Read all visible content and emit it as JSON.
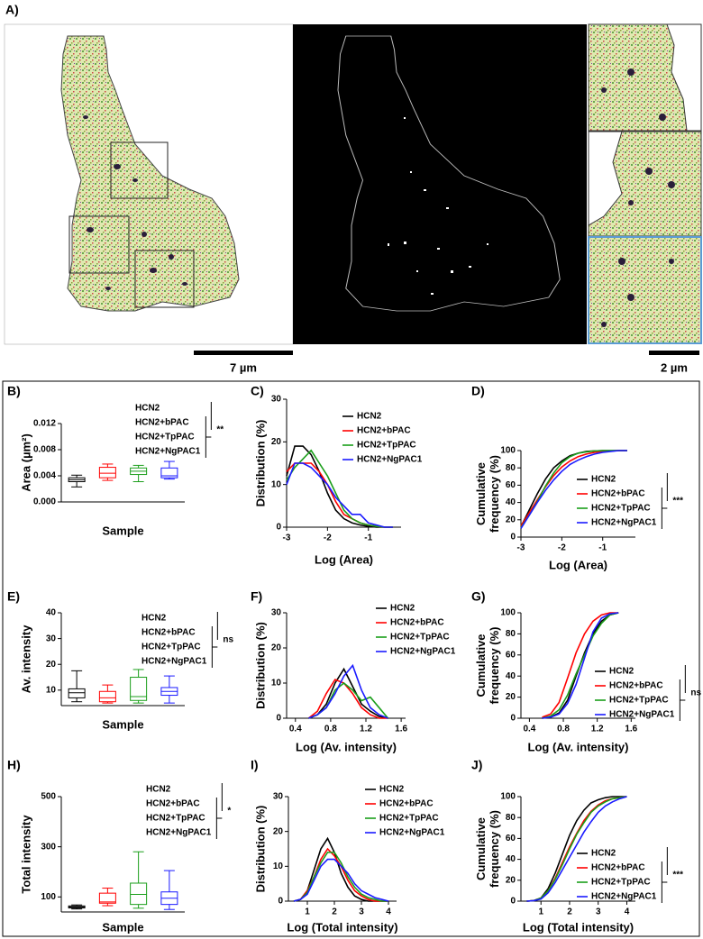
{
  "panel_a": {
    "panel_label": "A)",
    "scale_bar_left": "7 µm",
    "scale_bar_right": "2 µm"
  },
  "chart_data": [
    {
      "type": "box",
      "panel_label": "B)",
      "ylabel": "Area (µm²)",
      "xlabel": "Sample",
      "ylim": [
        0,
        0.012
      ],
      "yticks": [
        {
          "value": 0,
          "label": "0.000"
        },
        {
          "value": 0.004,
          "label": "0.004"
        },
        {
          "value": 0.008,
          "label": "0.008"
        },
        {
          "value": 0.012,
          "label": "0.012"
        }
      ],
      "significance": "**",
      "series": [
        {
          "name": "HCN2",
          "color": "#000000",
          "min": 0.0023,
          "q1": 0.0031,
          "median": 0.0034,
          "q3": 0.0037,
          "max": 0.0041
        },
        {
          "name": "HCN2+bPAC",
          "color": "#ff0000",
          "min": 0.0033,
          "q1": 0.0037,
          "median": 0.0044,
          "q3": 0.0053,
          "max": 0.0058
        },
        {
          "name": "HCN2+TpPAC",
          "color": "#1a9e1a",
          "min": 0.0031,
          "q1": 0.0042,
          "median": 0.0047,
          "q3": 0.0052,
          "max": 0.0056
        },
        {
          "name": "HCN2+NgPAC1",
          "color": "#1a1aff",
          "min": 0.0035,
          "q1": 0.0037,
          "median": 0.004,
          "q3": 0.0052,
          "max": 0.0062
        }
      ]
    },
    {
      "type": "line",
      "panel_label": "C)",
      "ylabel": "Distribution (%)",
      "xlabel": "Log (Area)",
      "x": [
        -3,
        -2.8,
        -2.6,
        -2.4,
        -2.2,
        -2,
        -1.8,
        -1.6,
        -1.4,
        -1.2,
        -1,
        -0.8,
        -0.6,
        -0.4
      ],
      "xlim": [
        -3,
        -0.2
      ],
      "xticks": [
        -3,
        -2,
        -1
      ],
      "ylim": [
        0,
        30
      ],
      "yticks": [
        0,
        10,
        20,
        30
      ],
      "series": [
        {
          "name": "HCN2",
          "color": "#000000",
          "values": [
            12,
            19,
            19,
            17,
            13,
            8,
            4,
            2,
            1,
            0.5,
            0.2,
            0,
            0,
            0
          ]
        },
        {
          "name": "HCN2+bPAC",
          "color": "#ff0000",
          "values": [
            13,
            15,
            15,
            15,
            13,
            10,
            6,
            3,
            2,
            1,
            0.5,
            0.2,
            0,
            0
          ]
        },
        {
          "name": "HCN2+TpPAC",
          "color": "#1a9e1a",
          "values": [
            11,
            14,
            16,
            18,
            15,
            12,
            8,
            4,
            2,
            1,
            0.5,
            0.2,
            0,
            0
          ]
        },
        {
          "name": "HCN2+NgPAC1",
          "color": "#1a1aff",
          "values": [
            10,
            15,
            15,
            14,
            12,
            10,
            7,
            5,
            3,
            3,
            1,
            0.5,
            0,
            0
          ]
        }
      ]
    },
    {
      "type": "line",
      "panel_label": "D)",
      "ylabel": "Cumulative frequency (%)",
      "xlabel": "Log (Area)",
      "x": [
        -3,
        -2.8,
        -2.6,
        -2.4,
        -2.2,
        -2,
        -1.8,
        -1.6,
        -1.4,
        -1.2,
        -1,
        -0.8,
        -0.6,
        -0.4
      ],
      "xlim": [
        -3,
        -0.2
      ],
      "xticks": [
        -3,
        -2,
        -1
      ],
      "ylim": [
        0,
        100
      ],
      "yticks": [
        0,
        20,
        40,
        60,
        80,
        100
      ],
      "significance": "***",
      "series": [
        {
          "name": "HCN2",
          "color": "#000000",
          "values": [
            12,
            31,
            50,
            67,
            80,
            88,
            94,
            97,
            99,
            99.5,
            100,
            100,
            100,
            100
          ]
        },
        {
          "name": "HCN2+bPAC",
          "color": "#ff0000",
          "values": [
            13,
            28,
            43,
            58,
            71,
            81,
            88,
            93,
            96,
            98,
            99,
            99.5,
            100,
            100
          ]
        },
        {
          "name": "HCN2+TpPAC",
          "color": "#1a9e1a",
          "values": [
            11,
            25,
            41,
            59,
            74,
            86,
            93,
            97,
            98.5,
            99.5,
            100,
            100,
            100,
            100
          ]
        },
        {
          "name": "HCN2+NgPAC1",
          "color": "#1a1aff",
          "values": [
            10,
            25,
            40,
            54,
            66,
            76,
            84,
            89,
            93,
            96,
            98,
            99,
            100,
            100
          ]
        }
      ]
    },
    {
      "type": "box",
      "panel_label": "E)",
      "ylabel": "Av. intensity",
      "xlabel": "Sample",
      "ylim": [
        4,
        40
      ],
      "yticks": [
        10,
        20,
        30,
        40
      ],
      "significance": "ns",
      "series": [
        {
          "name": "HCN2",
          "color": "#000000",
          "min": 5.5,
          "q1": 7,
          "median": 9,
          "q3": 10.5,
          "max": 17.5
        },
        {
          "name": "HCN2+bPAC",
          "color": "#ff0000",
          "min": 5,
          "q1": 5.5,
          "median": 7,
          "q3": 9.5,
          "max": 12
        },
        {
          "name": "HCN2+TpPAC",
          "color": "#1a9e1a",
          "min": 5,
          "q1": 6,
          "median": 7.5,
          "q3": 15,
          "max": 18
        },
        {
          "name": "HCN2+NgPAC1",
          "color": "#1a1aff",
          "min": 5,
          "q1": 8,
          "median": 9.5,
          "q3": 11,
          "max": 15.5
        }
      ]
    },
    {
      "type": "line",
      "panel_label": "F)",
      "ylabel": "Distribution (%)",
      "xlabel": "Log (Av. intensity)",
      "x": [
        0.55,
        0.65,
        0.75,
        0.85,
        0.95,
        1.05,
        1.15,
        1.25,
        1.35,
        1.45
      ],
      "xlim": [
        0.3,
        1.65
      ],
      "xticks": [
        0.4,
        0.8,
        1.2,
        1.6
      ],
      "ylim": [
        0,
        30
      ],
      "yticks": [
        0,
        10,
        20,
        30
      ],
      "series": [
        {
          "name": "HCN2",
          "color": "#000000",
          "values": [
            0,
            1,
            4,
            10,
            14,
            9,
            4,
            2,
            0.5,
            0
          ]
        },
        {
          "name": "HCN2+bPAC",
          "color": "#ff0000",
          "values": [
            0,
            2,
            7,
            11,
            10,
            7,
            3,
            1,
            0,
            0
          ]
        },
        {
          "name": "HCN2+TpPAC",
          "color": "#1a9e1a",
          "values": [
            0,
            1,
            3,
            8,
            10,
            8,
            5,
            6,
            3,
            0
          ]
        },
        {
          "name": "HCN2+NgPAC1",
          "color": "#1a1aff",
          "values": [
            0,
            1,
            3,
            7,
            12,
            15,
            8,
            3,
            1,
            0
          ]
        }
      ]
    },
    {
      "type": "line",
      "panel_label": "G)",
      "ylabel": "Cumulative frequency (%)",
      "xlabel": "Log (Av. intensity)",
      "x": [
        0.55,
        0.65,
        0.75,
        0.85,
        0.95,
        1.05,
        1.15,
        1.25,
        1.35,
        1.45
      ],
      "xlim": [
        0.3,
        1.65
      ],
      "xticks": [
        0.4,
        0.8,
        1.2,
        1.6
      ],
      "ylim": [
        0,
        100
      ],
      "yticks": [
        0,
        20,
        40,
        60,
        80,
        100
      ],
      "significance": "ns",
      "series": [
        {
          "name": "HCN2",
          "color": "#000000",
          "values": [
            0,
            1,
            5,
            17,
            40,
            62,
            80,
            92,
            98,
            100
          ]
        },
        {
          "name": "HCN2+bPAC",
          "color": "#ff0000",
          "values": [
            1,
            4,
            15,
            38,
            62,
            80,
            92,
            98,
            100,
            100
          ]
        },
        {
          "name": "HCN2+TpPAC",
          "color": "#1a9e1a",
          "values": [
            0,
            2,
            8,
            22,
            42,
            60,
            78,
            90,
            98,
            100
          ]
        },
        {
          "name": "HCN2+NgPAC1",
          "color": "#1a1aff",
          "values": [
            0,
            1,
            4,
            14,
            32,
            57,
            82,
            95,
            99,
            100
          ]
        }
      ]
    },
    {
      "type": "box",
      "panel_label": "H)",
      "ylabel": "Total intensity",
      "xlabel": "Sample",
      "ylim": [
        40,
        500
      ],
      "yticks": [
        100,
        300,
        500
      ],
      "significance": "*",
      "series": [
        {
          "name": "HCN2",
          "color": "#000000",
          "min": 52,
          "q1": 56,
          "median": 60,
          "q3": 64,
          "max": 68
        },
        {
          "name": "HCN2+bPAC",
          "color": "#ff0000",
          "min": 65,
          "q1": 75,
          "median": 80,
          "q3": 115,
          "max": 135
        },
        {
          "name": "HCN2+TpPAC",
          "color": "#1a9e1a",
          "min": 55,
          "q1": 70,
          "median": 110,
          "q3": 155,
          "max": 280
        },
        {
          "name": "HCN2+NgPAC1",
          "color": "#1a1aff",
          "min": 50,
          "q1": 70,
          "median": 95,
          "q3": 120,
          "max": 205
        }
      ]
    },
    {
      "type": "line",
      "panel_label": "I)",
      "ylabel": "Distribution (%)",
      "xlabel": "Log (Total intensity)",
      "x": [
        0.5,
        0.75,
        1,
        1.25,
        1.5,
        1.75,
        2,
        2.25,
        2.5,
        2.75,
        3,
        3.25,
        3.5,
        3.75,
        4
      ],
      "xlim": [
        0.3,
        4.3
      ],
      "xticks": [
        1,
        2,
        3,
        4
      ],
      "ylim": [
        0,
        30
      ],
      "yticks": [
        0,
        10,
        20,
        30
      ],
      "series": [
        {
          "name": "HCN2",
          "color": "#000000",
          "values": [
            0,
            0.5,
            3,
            9,
            15,
            18,
            14,
            8,
            4,
            1.5,
            0.5,
            0,
            0,
            0,
            0
          ]
        },
        {
          "name": "HCN2+bPAC",
          "color": "#ff0000",
          "values": [
            0,
            0.5,
            3,
            7,
            12,
            15,
            13,
            10,
            6,
            3,
            1.5,
            0.5,
            0,
            0,
            0
          ]
        },
        {
          "name": "HCN2+TpPAC",
          "color": "#1a9e1a",
          "values": [
            0,
            0.5,
            2.5,
            7,
            11,
            14,
            14,
            11,
            7,
            4,
            2,
            1,
            0.5,
            0,
            0
          ]
        },
        {
          "name": "HCN2+NgPAC1",
          "color": "#1a1aff",
          "values": [
            0,
            0.5,
            2,
            6,
            10,
            12,
            12,
            10,
            8,
            5,
            3,
            2,
            1,
            0.5,
            0
          ]
        }
      ]
    },
    {
      "type": "line",
      "panel_label": "J)",
      "ylabel": "Cumulative frequency (%)",
      "xlabel": "Log (Total intensity)",
      "x": [
        0.5,
        0.75,
        1,
        1.25,
        1.5,
        1.75,
        2,
        2.25,
        2.5,
        2.75,
        3,
        3.25,
        3.5,
        3.75,
        4
      ],
      "xlim": [
        0.3,
        4.3
      ],
      "xticks": [
        1,
        2,
        3,
        4
      ],
      "ylim": [
        0,
        100
      ],
      "yticks": [
        0,
        20,
        40,
        60,
        80,
        100
      ],
      "significance": "***",
      "series": [
        {
          "name": "HCN2",
          "color": "#000000",
          "values": [
            0,
            0.5,
            3,
            12,
            27,
            45,
            63,
            77,
            87,
            94,
            97,
            99,
            100,
            100,
            100
          ]
        },
        {
          "name": "HCN2+bPAC",
          "color": "#ff0000",
          "values": [
            0,
            0.5,
            3,
            10,
            22,
            37,
            52,
            65,
            77,
            86,
            92,
            96,
            98,
            99,
            100
          ]
        },
        {
          "name": "HCN2+TpPAC",
          "color": "#1a9e1a",
          "values": [
            0,
            0.5,
            3,
            10,
            21,
            35,
            50,
            64,
            75,
            85,
            91,
            95,
            98,
            99,
            100
          ]
        },
        {
          "name": "HCN2+NgPAC1",
          "color": "#1a1aff",
          "values": [
            0,
            0.5,
            2,
            8,
            18,
            30,
            42,
            54,
            66,
            76,
            85,
            91,
            95,
            98,
            100
          ]
        }
      ]
    }
  ]
}
